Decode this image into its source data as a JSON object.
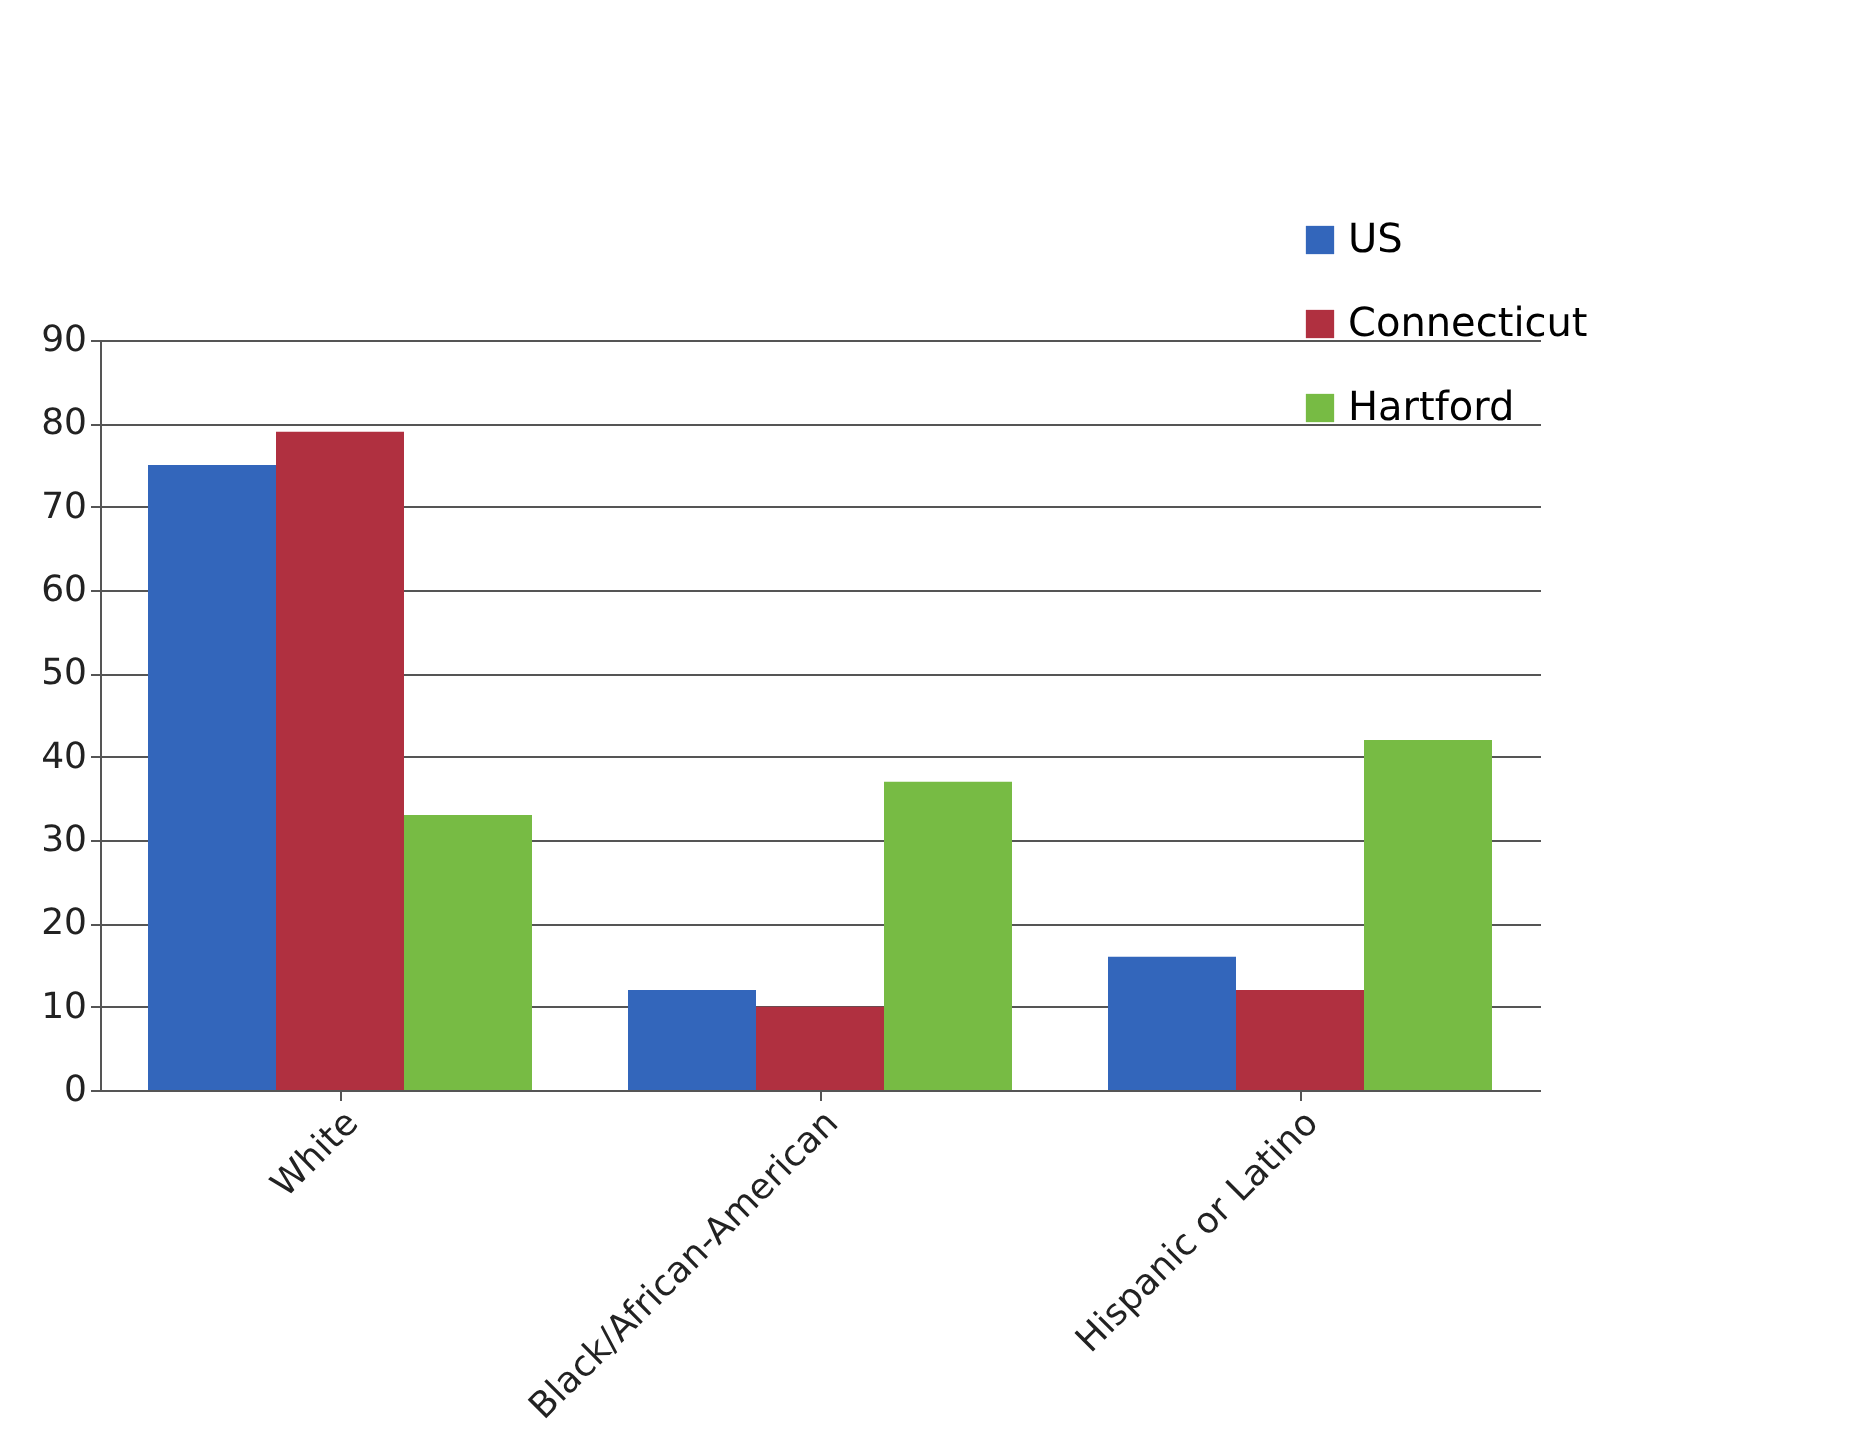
{
  "chart_data": {
    "type": "bar",
    "categories": [
      "White",
      "Black/African-American",
      "Hispanic or Latino"
    ],
    "series": [
      {
        "name": "US",
        "color": "#3366bb",
        "values": [
          75,
          12,
          16
        ]
      },
      {
        "name": "Connecticut",
        "color": "#b03040",
        "values": [
          79,
          10,
          12
        ]
      },
      {
        "name": "Hartford",
        "color": "#77bb44",
        "values": [
          33,
          37,
          42
        ]
      }
    ],
    "ylim": [
      0,
      90
    ],
    "yticks": [
      0,
      10,
      20,
      30,
      40,
      50,
      60,
      70,
      80,
      90
    ],
    "grid": "y",
    "legend": "top right"
  }
}
